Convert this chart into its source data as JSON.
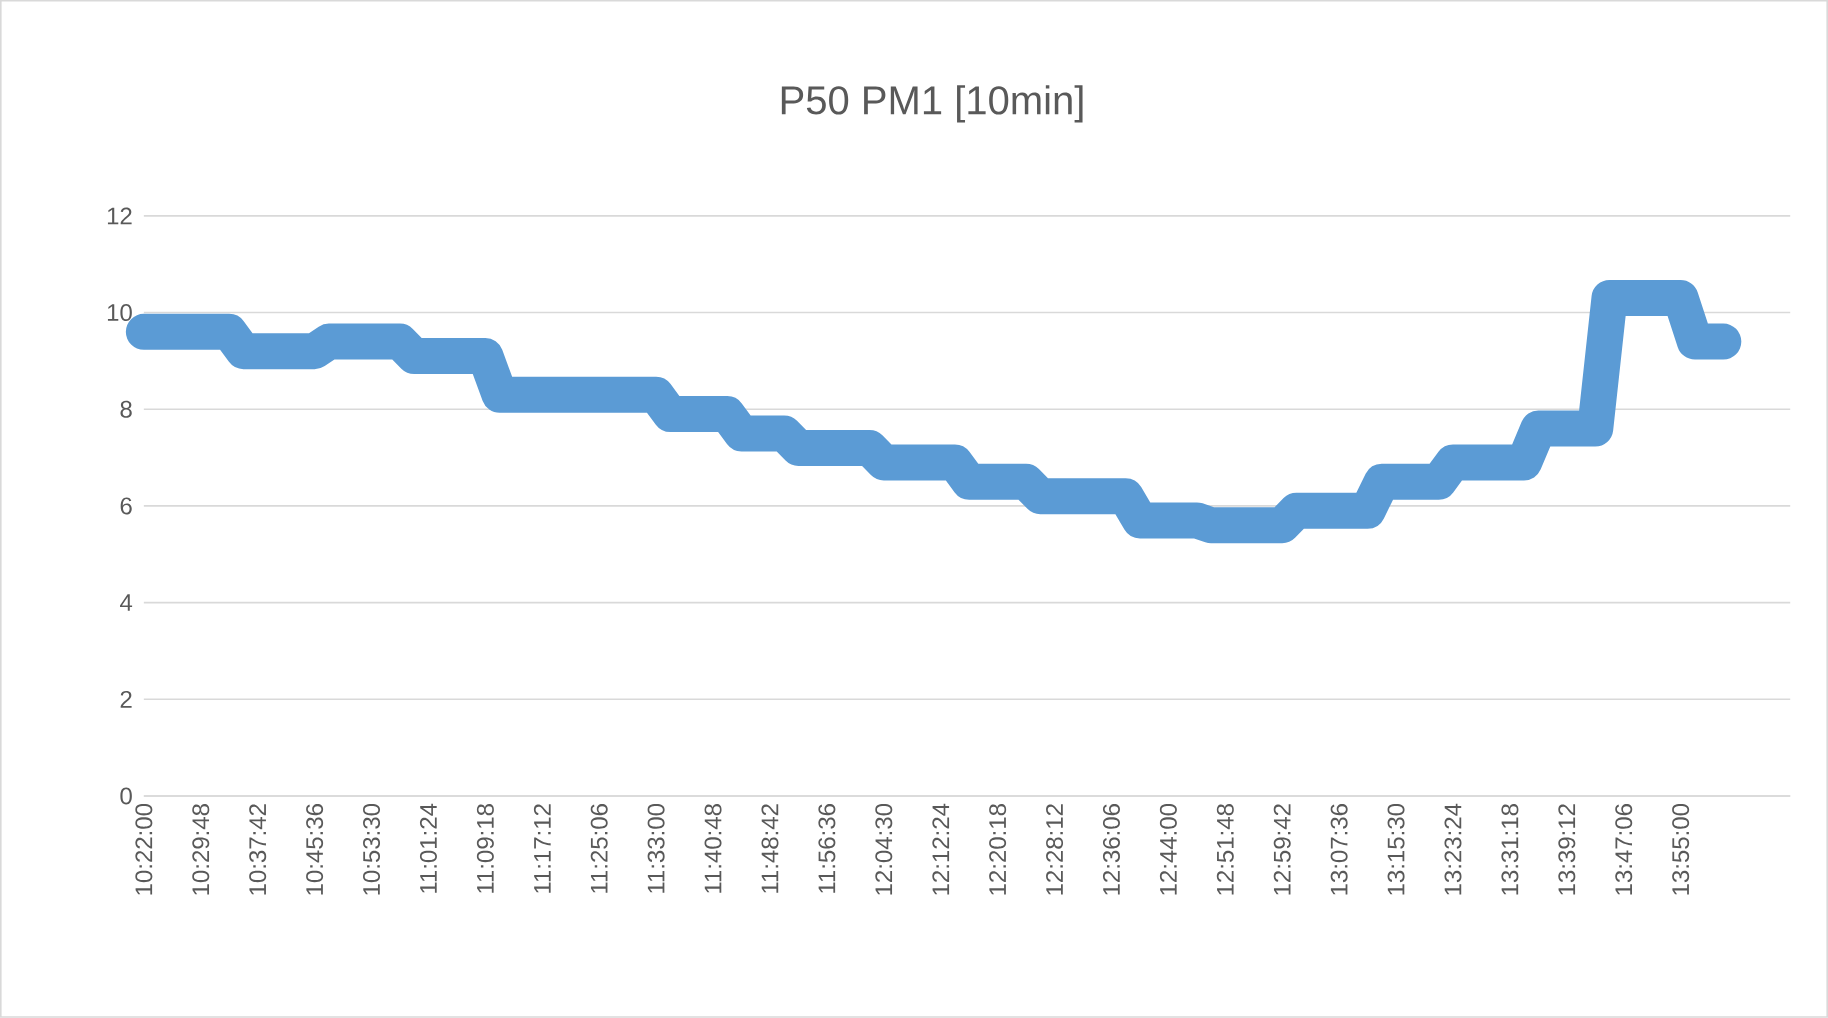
{
  "chart_data": {
    "type": "line",
    "title": "P50 PM1 [10min]",
    "categories": [
      "10:22:00",
      null,
      null,
      null,
      "10:29:48",
      null,
      null,
      null,
      "10:37:42",
      null,
      null,
      null,
      "10:45:36",
      null,
      null,
      null,
      "10:53:30",
      null,
      null,
      null,
      "11:01:24",
      null,
      null,
      null,
      "11:09:18",
      null,
      null,
      null,
      "11:17:12",
      null,
      null,
      null,
      "11:25:06",
      null,
      null,
      null,
      "11:33:00",
      null,
      null,
      null,
      "11:40:48",
      null,
      null,
      null,
      "11:48:42",
      null,
      null,
      null,
      "11:56:36",
      null,
      null,
      null,
      "12:04:30",
      null,
      null,
      null,
      "12:12:24",
      null,
      null,
      null,
      "12:20:18",
      null,
      null,
      null,
      "12:28:12",
      null,
      null,
      null,
      "12:36:06",
      null,
      null,
      null,
      "12:44:00",
      null,
      null,
      null,
      "12:51:48",
      null,
      null,
      null,
      "12:59:42",
      null,
      null,
      null,
      "13:07:36",
      null,
      null,
      null,
      "13:15:30",
      null,
      null,
      null,
      "13:23:24",
      null,
      null,
      null,
      "13:31:18",
      null,
      null,
      null,
      "13:39:12",
      null,
      null,
      null,
      "13:47:06",
      null,
      null,
      null,
      "13:55:00",
      null,
      null,
      null
    ],
    "series": [
      {
        "color": "#5b9bd5",
        "values": [
          9.6,
          9.6,
          9.6,
          9.6,
          9.6,
          9.6,
          9.6,
          9.2,
          9.2,
          9.2,
          9.2,
          9.2,
          9.2,
          9.4,
          9.4,
          9.4,
          9.4,
          9.4,
          9.4,
          9.1,
          9.1,
          9.1,
          9.1,
          9.1,
          9.1,
          8.3,
          8.3,
          8.3,
          8.3,
          8.3,
          8.3,
          8.3,
          8.3,
          8.3,
          8.3,
          8.3,
          8.3,
          7.9,
          7.9,
          7.9,
          7.9,
          7.9,
          7.5,
          7.5,
          7.5,
          7.5,
          7.2,
          7.2,
          7.2,
          7.2,
          7.2,
          7.2,
          6.9,
          6.9,
          6.9,
          6.9,
          6.9,
          6.9,
          6.5,
          6.5,
          6.5,
          6.5,
          6.5,
          6.2,
          6.2,
          6.2,
          6.2,
          6.2,
          6.2,
          6.2,
          5.7,
          5.7,
          5.7,
          5.7,
          5.7,
          5.6,
          5.6,
          5.6,
          5.6,
          5.6,
          5.6,
          5.9,
          5.9,
          5.9,
          5.9,
          5.9,
          5.9,
          6.5,
          6.5,
          6.5,
          6.5,
          6.5,
          6.9,
          6.9,
          6.9,
          6.9,
          6.9,
          6.9,
          7.6,
          7.6,
          7.6,
          7.6,
          7.6,
          10.3,
          10.3,
          10.3,
          10.3,
          10.3,
          10.3,
          9.4,
          9.4,
          9.4
        ]
      }
    ],
    "ylim": [
      0,
      12
    ],
    "yticks": [
      0,
      2,
      4,
      6,
      8,
      10,
      12
    ],
    "grid": "y"
  }
}
